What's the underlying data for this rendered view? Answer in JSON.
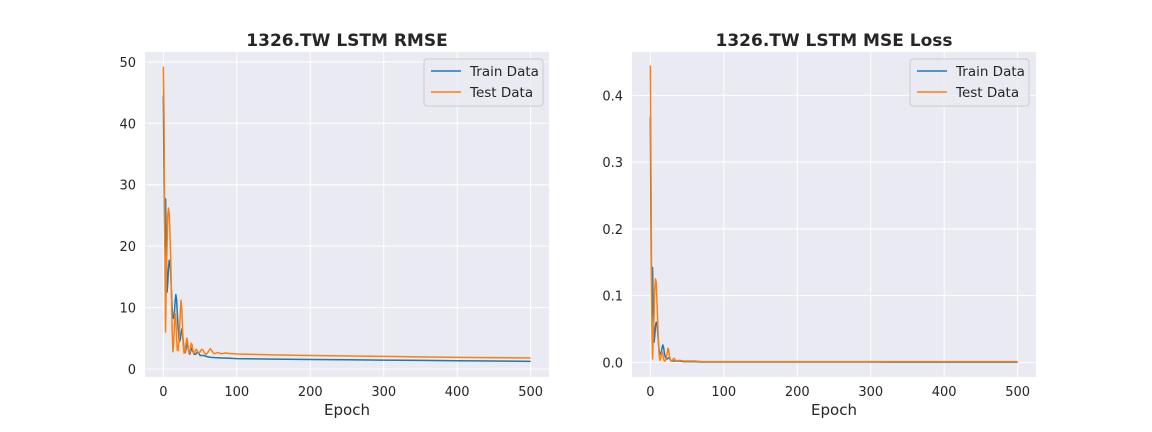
{
  "chart_data": [
    {
      "type": "line",
      "title": "1326.TW  LSTM RMSE",
      "xlabel": "Epoch",
      "ylabel": "",
      "xlim": [
        -25,
        525
      ],
      "ylim": [
        -1.3,
        51.6
      ],
      "xticks": [
        0,
        100,
        200,
        300,
        400,
        500
      ],
      "yticks": [
        0,
        10,
        20,
        30,
        40,
        50
      ],
      "grid": true,
      "legend": "top-right",
      "series": [
        {
          "name": "Train Data",
          "color": "#1f77b4",
          "x": [
            0,
            1,
            2,
            3,
            4,
            5,
            6,
            7,
            8,
            9,
            10,
            11,
            12,
            13,
            14,
            15,
            16,
            17,
            18,
            19,
            20,
            21,
            22,
            23,
            24,
            25,
            26,
            27,
            28,
            29,
            30,
            31,
            32,
            33,
            34,
            35,
            36,
            37,
            38,
            39,
            40,
            42,
            44,
            46,
            48,
            50,
            55,
            60,
            65,
            70,
            80,
            90,
            100,
            125,
            150,
            200,
            250,
            300,
            350,
            400,
            450,
            500
          ],
          "y": [
            44.5,
            30.0,
            20.0,
            27.7,
            20.0,
            12.5,
            14.0,
            16.5,
            17.7,
            17.2,
            15.5,
            12.5,
            9.8,
            8.6,
            8.2,
            9.0,
            11.0,
            12.1,
            11.3,
            9.0,
            6.9,
            5.2,
            4.5,
            4.8,
            5.8,
            6.5,
            5.9,
            4.6,
            3.3,
            2.6,
            2.7,
            3.4,
            4.1,
            3.9,
            3.2,
            2.6,
            2.4,
            2.8,
            3.4,
            3.4,
            2.9,
            2.4,
            2.4,
            2.7,
            2.6,
            2.2,
            2.2,
            2.0,
            1.9,
            1.85,
            1.8,
            1.75,
            1.7,
            1.65,
            1.6,
            1.55,
            1.5,
            1.45,
            1.4,
            1.35,
            1.3,
            1.25
          ]
        },
        {
          "name": "Test Data",
          "color": "#ff7f0e",
          "x": [
            0,
            1,
            2,
            3,
            4,
            5,
            6,
            7,
            8,
            9,
            10,
            11,
            12,
            13,
            14,
            15,
            16,
            17,
            18,
            19,
            20,
            21,
            22,
            23,
            24,
            25,
            26,
            27,
            28,
            29,
            30,
            31,
            32,
            33,
            34,
            35,
            36,
            37,
            38,
            39,
            40,
            41,
            42,
            43,
            44,
            45,
            46,
            47,
            48,
            49,
            50,
            52,
            54,
            56,
            58,
            60,
            62,
            64,
            66,
            68,
            70,
            72,
            74,
            76,
            78,
            80,
            85,
            90,
            95,
            100,
            150,
            200,
            300,
            400,
            500
          ],
          "y": [
            49.2,
            40.0,
            20.0,
            6.0,
            15.0,
            20.0,
            25.0,
            26.2,
            25.3,
            22.0,
            18.0,
            12.0,
            6.0,
            2.8,
            4.0,
            7.0,
            9.0,
            8.0,
            5.0,
            3.0,
            3.0,
            4.2,
            6.5,
            9.0,
            11.2,
            10.0,
            7.0,
            4.0,
            2.6,
            2.6,
            3.2,
            4.5,
            5.0,
            4.5,
            3.2,
            2.5,
            2.7,
            3.6,
            4.2,
            4.0,
            3.2,
            2.7,
            2.6,
            2.8,
            3.1,
            3.2,
            3.0,
            2.8,
            2.6,
            2.6,
            2.8,
            3.2,
            3.1,
            2.6,
            2.4,
            2.6,
            3.0,
            3.3,
            3.0,
            2.6,
            2.5,
            2.6,
            2.7,
            2.6,
            2.5,
            2.5,
            2.6,
            2.5,
            2.5,
            2.45,
            2.3,
            2.2,
            2.05,
            1.9,
            1.8
          ]
        }
      ]
    },
    {
      "type": "line",
      "title": "1326.TW  LSTM MSE Loss",
      "xlabel": "Epoch",
      "ylabel": "",
      "xlim": [
        -25,
        525
      ],
      "ylim": [
        -0.022,
        0.465
      ],
      "xticks": [
        0,
        100,
        200,
        300,
        400,
        500
      ],
      "yticks": [
        0.0,
        0.1,
        0.2,
        0.3,
        0.4
      ],
      "grid": true,
      "legend": "top-right",
      "series": [
        {
          "name": "Train Data",
          "color": "#1f77b4",
          "x": [
            0,
            1,
            2,
            3,
            4,
            5,
            6,
            7,
            8,
            9,
            10,
            11,
            12,
            13,
            14,
            15,
            16,
            17,
            18,
            19,
            20,
            21,
            22,
            23,
            24,
            25,
            26,
            27,
            28,
            29,
            30,
            35,
            40,
            45,
            50,
            60,
            70,
            80,
            100,
            200,
            300,
            400,
            500
          ],
          "y": [
            0.367,
            0.17,
            0.07,
            0.142,
            0.07,
            0.03,
            0.04,
            0.055,
            0.06,
            0.058,
            0.045,
            0.03,
            0.018,
            0.013,
            0.012,
            0.016,
            0.022,
            0.026,
            0.022,
            0.015,
            0.009,
            0.006,
            0.005,
            0.005,
            0.006,
            0.007,
            0.006,
            0.004,
            0.003,
            0.002,
            0.002,
            0.002,
            0.002,
            0.001,
            0.001,
            0.001,
            0.0005,
            0.0005,
            0.0005,
            0.0005,
            0.0004,
            0.0003,
            0.0003
          ]
        },
        {
          "name": "Test Data",
          "color": "#ff7f0e",
          "x": [
            0,
            1,
            2,
            3,
            4,
            5,
            6,
            7,
            8,
            9,
            10,
            11,
            12,
            13,
            14,
            15,
            16,
            17,
            18,
            19,
            20,
            21,
            22,
            23,
            24,
            25,
            26,
            27,
            28,
            29,
            30,
            31,
            32,
            33,
            34,
            35,
            40,
            45,
            50,
            60,
            70,
            80,
            100,
            200,
            300,
            400,
            500
          ],
          "y": [
            0.445,
            0.25,
            0.06,
            0.005,
            0.04,
            0.07,
            0.11,
            0.125,
            0.12,
            0.09,
            0.06,
            0.03,
            0.01,
            0.003,
            0.006,
            0.012,
            0.016,
            0.012,
            0.005,
            0.002,
            0.002,
            0.004,
            0.008,
            0.014,
            0.021,
            0.018,
            0.01,
            0.004,
            0.002,
            0.002,
            0.003,
            0.005,
            0.006,
            0.005,
            0.003,
            0.002,
            0.003,
            0.002,
            0.002,
            0.002,
            0.001,
            0.001,
            0.001,
            0.001,
            0.001,
            0.001,
            0.001
          ]
        }
      ]
    }
  ]
}
